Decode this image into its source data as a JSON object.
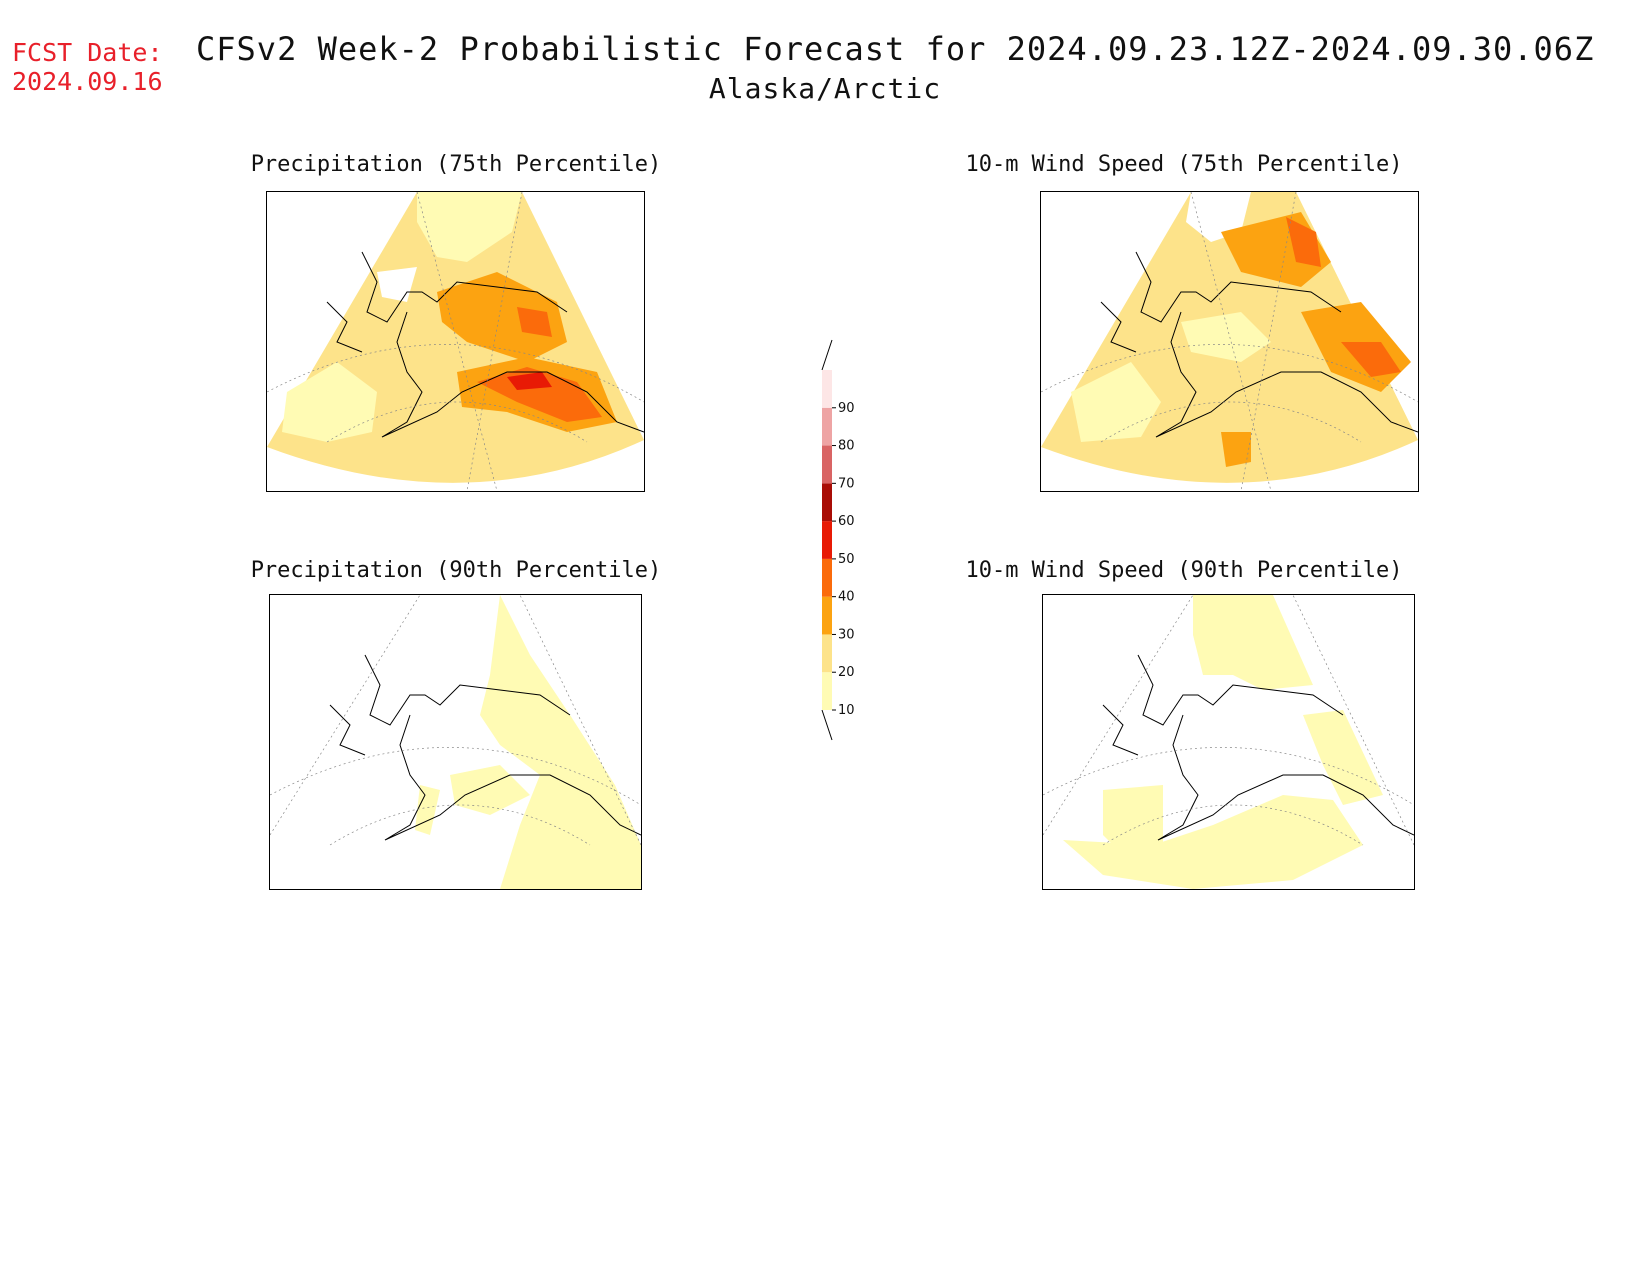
{
  "header": {
    "fcst_label": "FCST Date:",
    "fcst_date": "2024.09.16",
    "title": "CFSv2 Week-2 Probabilistic Forecast for 2024.09.23.12Z-2024.09.30.06Z",
    "subtitle": "Alaska/Arctic"
  },
  "panels": [
    {
      "title": "Precipitation (75th Percentile)"
    },
    {
      "title": "10-m Wind Speed (75th Percentile)"
    },
    {
      "title": "Precipitation (90th Percentile)"
    },
    {
      "title": "10-m Wind Speed (90th Percentile)"
    }
  ],
  "colorbar": {
    "levels": [
      "10",
      "20",
      "30",
      "40",
      "50",
      "60",
      "70",
      "80",
      "90"
    ],
    "colors": [
      "#fffbb4",
      "#fde38a",
      "#fca311",
      "#fb6b0b",
      "#e81a05",
      "#a90d06",
      "#d96464",
      "#eea4a4",
      "#fde6e6"
    ]
  }
}
